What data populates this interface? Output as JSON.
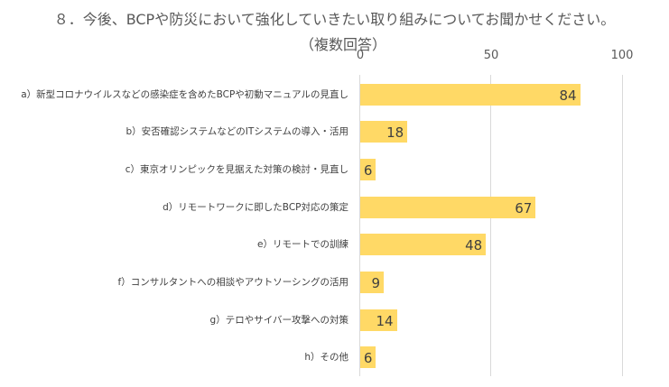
{
  "chart_data": {
    "type": "bar",
    "orientation": "horizontal",
    "title": "８．今後、BCPや防災において強化していきたい取り組みについてお聞かせください。",
    "subtitle": "（複数回答）",
    "xlabel": "",
    "ylabel": "",
    "xlim": [
      0,
      100
    ],
    "ticks": [
      "0",
      "50",
      "100"
    ],
    "grid": true,
    "legend": null,
    "bar_color": "#ffd966",
    "categories": [
      "a）新型コロナウイルスなどの感染症を含めたBCPや初動マニュアルの見直し",
      "b）安否確認システムなどのITシステムの導入・活用",
      "c）東京オリンピックを見据えた対策の検討・見直し",
      "d）リモートワークに即したBCP対応の策定",
      "e）リモートでの訓練",
      "f）コンサルタントへの相談やアウトソーシングの活用",
      "g）テロやサイバー攻撃への対策",
      "h）その他"
    ],
    "values": [
      84,
      18,
      6,
      67,
      48,
      9,
      14,
      6
    ]
  },
  "labels": {
    "title": "８．今後、BCPや防災において強化していきたい取り組みについてお聞かせください。",
    "subtitle": "（複数回答）",
    "tick_0": "0",
    "tick_50": "50",
    "tick_100": "100",
    "rows": [
      {
        "label": "a）新型コロナウイルスなどの感染症を含めたBCPや初動マニュアルの見直し",
        "value": "84"
      },
      {
        "label": "b）安否確認システムなどのITシステムの導入・活用",
        "value": "18"
      },
      {
        "label": "c）東京オリンピックを見据えた対策の検討・見直し",
        "value": "6"
      },
      {
        "label": "d）リモートワークに即したBCP対応の策定",
        "value": "67"
      },
      {
        "label": "e）リモートでの訓練",
        "value": "48"
      },
      {
        "label": "f）コンサルタントへの相談やアウトソーシングの活用",
        "value": "9"
      },
      {
        "label": "g）テロやサイバー攻撃への対策",
        "value": "14"
      },
      {
        "label": "h）その他",
        "value": "6"
      }
    ]
  }
}
